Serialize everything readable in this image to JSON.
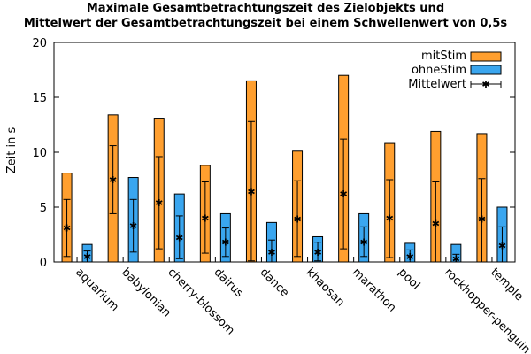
{
  "chart_data": {
    "type": "bar",
    "title_line1": "Maximale Gesamtbetrachtungszeit des Zielobjekts und",
    "title_line2": "Mittelwert der Gesamtbetrachtungszeit bei einem Schwellenwert von 0,5s",
    "ylabel": "Zeit in s",
    "xlabel": "",
    "ylim": [
      0,
      20
    ],
    "yticks": [
      "0",
      "5",
      "10",
      "15",
      "20"
    ],
    "categories": [
      "aquarium",
      "babylonian",
      "cherry-blossom",
      "dairus",
      "dance",
      "khaosan",
      "marathon",
      "pool",
      "rockhopper-penguin",
      "temple"
    ],
    "series": [
      {
        "name": "mitStim",
        "color": "#ff9f2f",
        "values": [
          8.1,
          13.4,
          13.1,
          8.8,
          16.5,
          10.1,
          17.0,
          10.8,
          11.9,
          11.7
        ],
        "mean": [
          3.1,
          7.5,
          5.4,
          4.0,
          6.4,
          3.9,
          6.2,
          4.0,
          3.5,
          3.9
        ],
        "err_low": [
          0.5,
          4.4,
          1.2,
          0.8,
          0.1,
          0.5,
          1.2,
          0.4,
          0.0,
          0.0
        ],
        "err_high": [
          5.7,
          10.6,
          9.6,
          7.3,
          12.8,
          7.4,
          11.2,
          7.5,
          7.3,
          7.6
        ]
      },
      {
        "name": "ohneStim",
        "color": "#3aa6ef",
        "values": [
          1.6,
          7.7,
          6.2,
          4.4,
          3.6,
          2.3,
          4.4,
          1.7,
          1.6,
          5.0
        ],
        "mean": [
          0.5,
          3.3,
          2.2,
          1.8,
          0.9,
          0.9,
          1.8,
          0.5,
          0.3,
          1.5
        ],
        "err_low": [
          0.0,
          0.9,
          0.3,
          0.5,
          0.0,
          0.1,
          0.5,
          0.0,
          0.0,
          0.0
        ],
        "err_high": [
          1.0,
          5.7,
          4.2,
          3.1,
          2.0,
          1.8,
          3.2,
          1.1,
          0.7,
          3.2
        ]
      }
    ],
    "legend": {
      "position": "top-right",
      "mitStim": "mitStim",
      "ohneStim": "ohneStim",
      "mean": "Mittelwert"
    },
    "grid": false
  }
}
